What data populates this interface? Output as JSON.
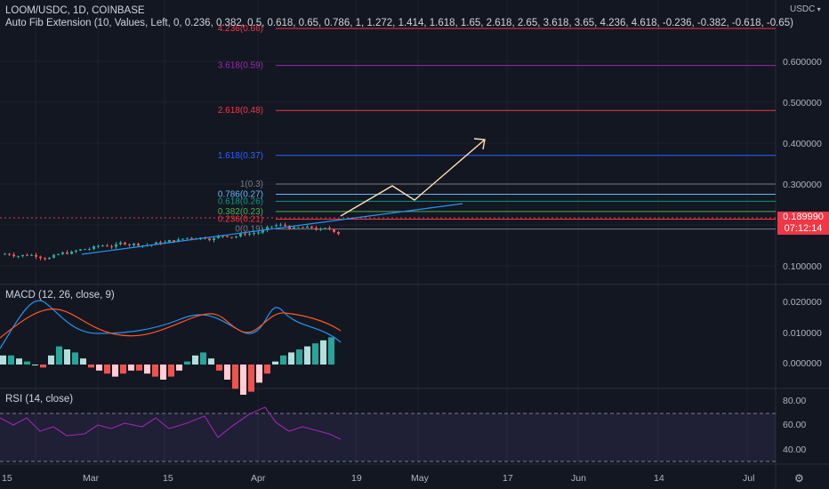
{
  "header": {
    "symbol_title": "LOOM/USDC, 1D, COINBASE",
    "fib_indicator": "Auto Fib Extension (10, Values, Left, 0, 0.236, 0.382, 0.5, 0.618, 0.65, 0.786, 1, 1.272, 1.414, 1.618, 1.65, 2.618, 2.65, 3.618, 3.65, 4.236, 4.618, -0.236, -0.382, -0.618, -0.65)"
  },
  "axis": {
    "currency": "USDC",
    "price_ticks": [
      "0.600000",
      "0.500000",
      "0.400000",
      "0.300000",
      "0.200000",
      "0.100000"
    ],
    "macd_ticks": [
      "0.020000",
      "0.010000",
      "0.000000"
    ],
    "rsi_ticks": [
      "80.00",
      "60.00",
      "40.00"
    ],
    "time_ticks": [
      "15",
      "Mar",
      "15",
      "Apr",
      "19",
      "May",
      "17",
      "Jun",
      "14",
      "Jul"
    ]
  },
  "price_badge": {
    "price": "0.189990",
    "countdown": "07:12:14",
    "color": "#f23645"
  },
  "fib_levels": [
    {
      "label": "4.236(0.66)",
      "value": 0.66,
      "color": "#f23645"
    },
    {
      "label": "3.618(0.59)",
      "value": 0.59,
      "color": "#9c27b0"
    },
    {
      "label": "2.618(0.48)",
      "value": 0.48,
      "color": "#f23645"
    },
    {
      "label": "1.618(0.37)",
      "value": 0.37,
      "color": "#2962ff"
    },
    {
      "label": "1(0.3)",
      "value": 0.3,
      "color": "#787b86"
    },
    {
      "label": "0.786(0.27)",
      "value": 0.275,
      "color": "#64b5f6"
    },
    {
      "label": "0.618(0.26)",
      "value": 0.258,
      "color": "#089981"
    },
    {
      "label": "0.382(0.23)",
      "value": 0.233,
      "color": "#4caf50"
    },
    {
      "label": "0.236(0.21)",
      "value": 0.214,
      "color": "#f23645"
    },
    {
      "label": "0(0.19)",
      "value": 0.19,
      "color": "#787b86"
    }
  ],
  "macd": {
    "label": "MACD (12, 26, close, 9)",
    "macd_color": "#2196f3",
    "signal_color": "#ff5722"
  },
  "rsi": {
    "label": "RSI (14, close)",
    "line_color": "#9c27b0"
  },
  "colors": {
    "up": "#26a69a",
    "down": "#ef5350",
    "background": "#131722",
    "grid": "#1e222d",
    "trendline": "#2196f3",
    "projection": "#ffe0b2"
  }
}
